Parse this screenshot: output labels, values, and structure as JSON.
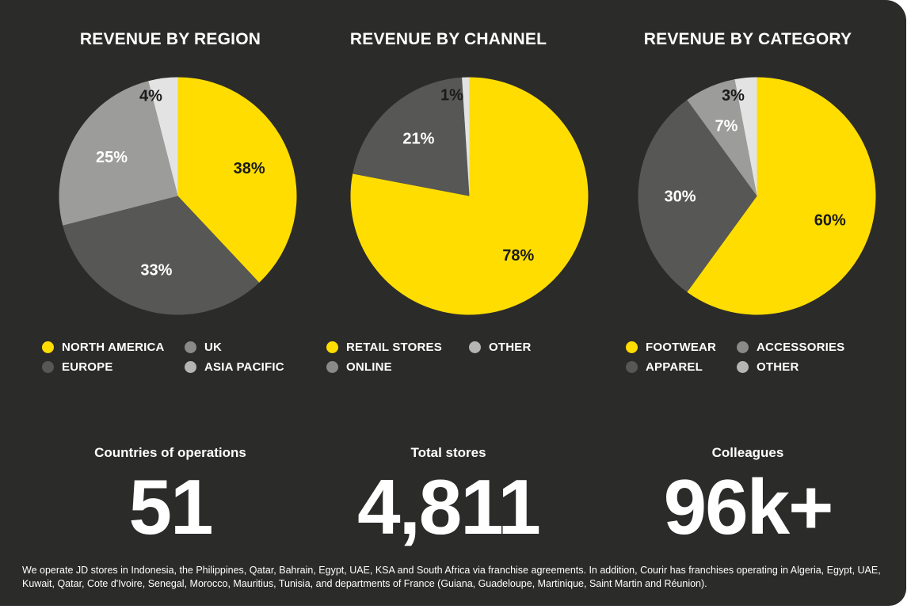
{
  "chart_data": [
    {
      "type": "pie",
      "title": "REVENUE BY REGION",
      "slices": [
        {
          "name": "NORTH AMERICA",
          "value": 38,
          "label": "38%",
          "color": "#ffdd00",
          "label_color": "#1a1a1a"
        },
        {
          "name": "EUROPE",
          "value": 33,
          "label": "33%",
          "color": "#575756",
          "label_color": "#ffffff"
        },
        {
          "name": "UK",
          "value": 25,
          "label": "25%",
          "color": "#9c9c9b",
          "label_color": "#ffffff"
        },
        {
          "name": "ASIA PACIFIC",
          "value": 4,
          "label": "4%",
          "color": "#e3e3e3",
          "label_color": "#1a1a1a"
        }
      ],
      "legend": [
        {
          "name": "NORTH AMERICA",
          "color": "#ffdd00"
        },
        {
          "name": "UK",
          "color": "#8a8a89"
        },
        {
          "name": "EUROPE",
          "color": "#575756"
        },
        {
          "name": "ASIA PACIFIC",
          "color": "#b5b5b4"
        }
      ]
    },
    {
      "type": "pie",
      "title": "REVENUE BY CHANNEL",
      "slices": [
        {
          "name": "RETAIL STORES",
          "value": 78,
          "label": "78%",
          "color": "#ffdd00",
          "label_color": "#1a1a1a"
        },
        {
          "name": "ONLINE",
          "value": 21,
          "label": "21%",
          "color": "#575756",
          "label_color": "#ffffff"
        },
        {
          "name": "OTHER",
          "value": 1,
          "label": "1%",
          "color": "#e3e3e3",
          "label_color": "#1a1a1a"
        }
      ],
      "legend": [
        {
          "name": "RETAIL STORES",
          "color": "#ffdd00"
        },
        {
          "name": "OTHER",
          "color": "#b5b5b4"
        },
        {
          "name": "ONLINE",
          "color": "#8a8a89"
        }
      ]
    },
    {
      "type": "pie",
      "title": "REVENUE BY CATEGORY",
      "slices": [
        {
          "name": "FOOTWEAR",
          "value": 60,
          "label": "60%",
          "color": "#ffdd00",
          "label_color": "#1a1a1a"
        },
        {
          "name": "APPAREL",
          "value": 30,
          "label": "30%",
          "color": "#575756",
          "label_color": "#ffffff"
        },
        {
          "name": "ACCESSORIES",
          "value": 7,
          "label": "7%",
          "color": "#9c9c9b",
          "label_color": "#ffffff"
        },
        {
          "name": "OTHER",
          "value": 3,
          "label": "3%",
          "color": "#e3e3e3",
          "label_color": "#1a1a1a"
        }
      ],
      "legend": [
        {
          "name": "FOOTWEAR",
          "color": "#ffdd00"
        },
        {
          "name": "ACCESSORIES",
          "color": "#8a8a89"
        },
        {
          "name": "APPAREL",
          "color": "#575756"
        },
        {
          "name": "OTHER",
          "color": "#b5b5b4"
        }
      ]
    }
  ],
  "stats": [
    {
      "label": "Countries of operations",
      "value": "51"
    },
    {
      "label": "Total stores",
      "value": "4,811"
    },
    {
      "label": "Colleagues",
      "value": "96k+"
    }
  ],
  "footnote": "We operate JD stores in Indonesia, the Philippines, Qatar, Bahrain, Egypt, UAE, KSA and South Africa via franchise agreements. In addition, Courir has franchises operating in Algeria, Egypt, UAE, Kuwait, Qatar, Cote d'Ivoire, Senegal, Morocco, Mauritius, Tunisia, and departments of France (Guiana, Guadeloupe, Martinique, Saint Martin and Réunion).",
  "colors": {
    "panel_background": "#2b2b2a",
    "accent": "#ffdd00",
    "text": "#ffffff"
  }
}
